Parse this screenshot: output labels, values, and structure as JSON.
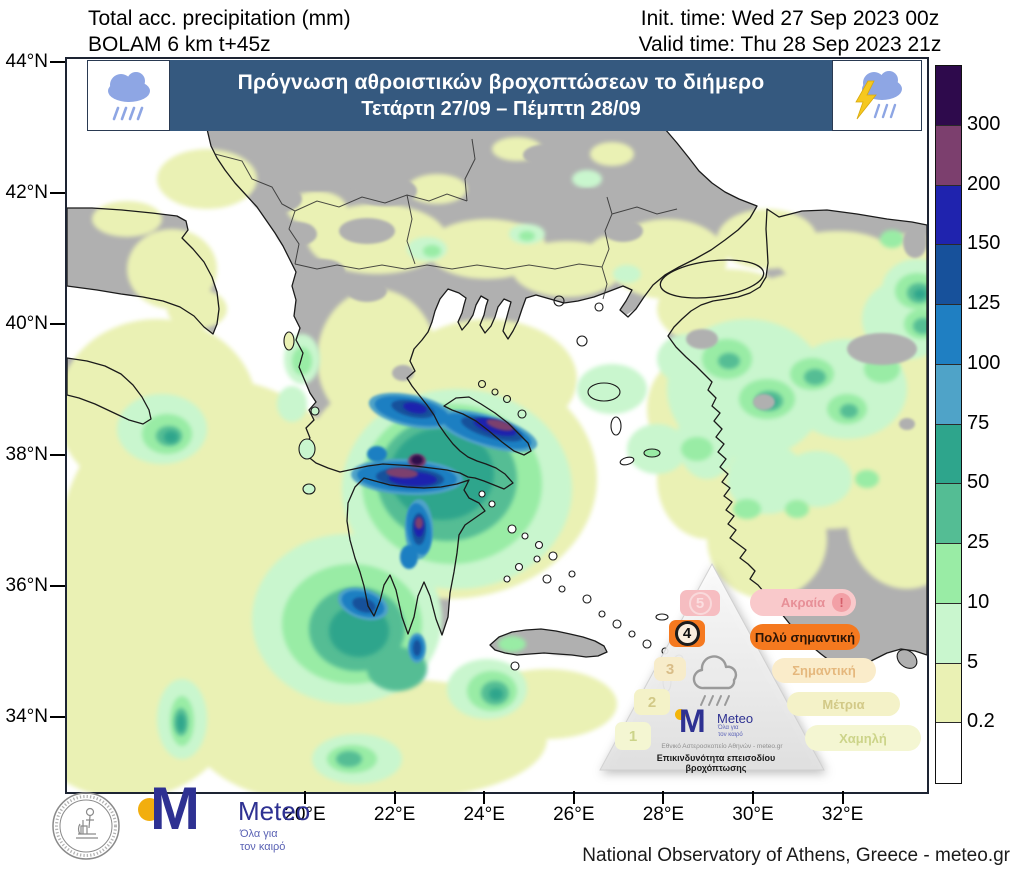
{
  "header": {
    "left_line1": "Total acc. precipitation (mm)",
    "left_line2": "BOLAM 6 km t+45z",
    "right_line1": "Init. time: Wed 27 Sep 2023 00z",
    "right_line2": "Valid time: Thu 28 Sep 2023 21z"
  },
  "banner": {
    "title": "Πρόγνωση αθροιστικών βροχοπτώσεων το διήμερο",
    "subtitle": "Τετάρτη 27/09 – Πέμπτη 28/09",
    "left_icon": "rain-cloud-icon",
    "right_icon": "storm-cloud-icon",
    "bg_color": "#35597f"
  },
  "map": {
    "lat_labels": [
      "44°N",
      "42°N",
      "40°N",
      "38°N",
      "36°N",
      "34°N"
    ],
    "lon_labels": [
      "20°E",
      "22°E",
      "24°E",
      "26°E",
      "28°E",
      "30°E",
      "32°E"
    ]
  },
  "legend": {
    "unit": "mm",
    "labels": [
      "300",
      "200",
      "150",
      "125",
      "100",
      "75",
      "50",
      "25",
      "10",
      "5",
      "0.2"
    ],
    "colors": [
      "#2e0a4c",
      "#7c3f6e",
      "#1f23ae",
      "#17519b",
      "#1f7fc2",
      "#4fa3c8",
      "#2ea58c",
      "#54bd94",
      "#99eca5",
      "#c9f6ce",
      "#eaf1b4",
      "#ffffff"
    ]
  },
  "palette": {
    "sea": "#ffffff",
    "dry_land": "#b0b0b0",
    "coastline": "#1a1a1a",
    "banner_blue": "#35597f",
    "cloud_blue": "#8ea6e4",
    "lightning_yellow": "#f6c81e",
    "logo_blue": "#2e3192",
    "alert_orange": "#f5791f"
  },
  "pyramid": {
    "caption": "Επικινδυνότητα επεισοδίου βροχόπτωσης",
    "subtext": "Εθνικό Αστεροσκοπείο Αθηνών - meteo.gr",
    "cloud_icon": "rain-cloud-outline-icon",
    "levels": [
      {
        "num": "5",
        "label": "Ακραία",
        "state": "faded",
        "badge": "!"
      },
      {
        "num": "4",
        "label": "Πολύ σημαντική",
        "state": "active",
        "badge": ""
      },
      {
        "num": "3",
        "label": "Σημαντική",
        "state": "faded",
        "badge": ""
      },
      {
        "num": "2",
        "label": "Μέτρια",
        "state": "faded",
        "badge": ""
      },
      {
        "num": "1",
        "label": "Χαμηλή",
        "state": "faded",
        "badge": ""
      }
    ],
    "logo": {
      "name": "Meteo",
      "tagline1": "Όλα για",
      "tagline2": "τον καιρό"
    }
  },
  "footer": {
    "seal": "national-observatory-of-athens-seal",
    "logo": {
      "name": "Meteo",
      "tagline1": "Όλα για",
      "tagline2": "τον καιρό"
    },
    "credit": "National Observatory of Athens, Greece - meteo.gr"
  }
}
